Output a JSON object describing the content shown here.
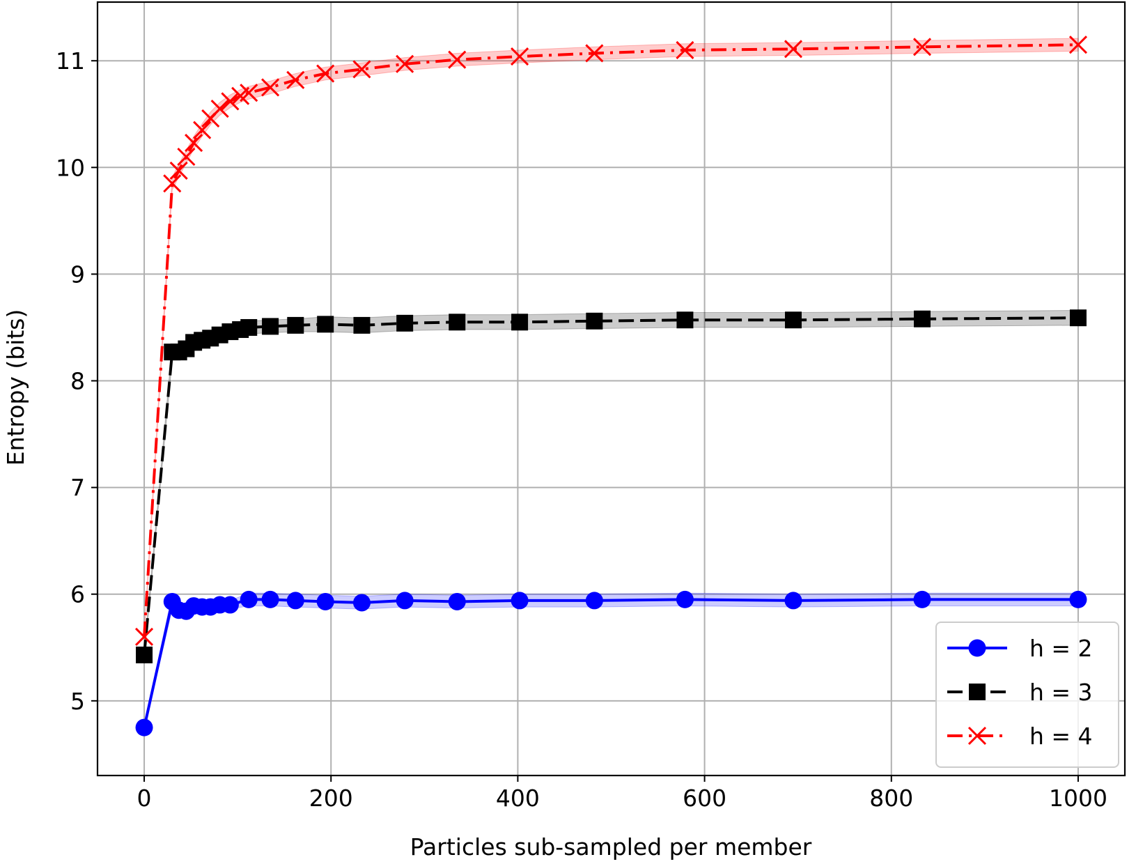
{
  "chart_data": {
    "type": "line",
    "title": "",
    "xlabel": "Particles sub-sampled per member",
    "ylabel": "Entropy (bits)",
    "xlim": [
      -50,
      1050
    ],
    "ylim": [
      4.3,
      11.55
    ],
    "xticks": [
      0,
      200,
      400,
      600,
      800,
      1000
    ],
    "xtick_labels": [
      "0",
      "200",
      "400",
      "600",
      "800",
      "1000"
    ],
    "yticks": [
      5,
      6,
      7,
      8,
      9,
      10,
      11
    ],
    "ytick_labels": [
      "5",
      "6",
      "7",
      "8",
      "9",
      "10",
      "11"
    ],
    "grid": true,
    "legend_position": "lower right",
    "x": [
      1,
      30,
      37,
      45,
      53,
      62,
      71,
      81,
      92,
      105,
      118,
      135,
      155,
      178,
      203,
      232,
      264,
      300,
      340,
      383,
      430,
      481,
      537,
      598,
      665,
      737,
      816,
      901,
      994
    ],
    "series": [
      {
        "name": "h = 2",
        "color": "#0000ff",
        "line_style": "solid",
        "marker": "circle",
        "band_color": "#0000ff",
        "x": [
          0,
          30,
          37,
          45,
          53,
          62,
          71,
          81,
          92,
          112,
          135,
          162,
          194,
          233,
          279,
          335,
          402,
          482,
          579,
          695,
          833,
          1000
        ],
        "values": [
          4.75,
          5.93,
          5.85,
          5.84,
          5.89,
          5.88,
          5.88,
          5.9,
          5.9,
          5.95,
          5.95,
          5.94,
          5.93,
          5.92,
          5.94,
          5.93,
          5.94,
          5.94,
          5.95,
          5.94,
          5.95,
          5.95
        ],
        "band_low": [
          4.73,
          5.86,
          5.8,
          5.8,
          5.84,
          5.84,
          5.84,
          5.86,
          5.86,
          5.89,
          5.89,
          5.88,
          5.87,
          5.86,
          5.88,
          5.87,
          5.88,
          5.88,
          5.89,
          5.88,
          5.89,
          5.89
        ],
        "band_high": [
          4.77,
          6.0,
          5.9,
          5.88,
          5.94,
          5.92,
          5.92,
          5.94,
          5.94,
          6.01,
          6.01,
          6.0,
          5.99,
          5.98,
          6.0,
          5.99,
          6.0,
          6.0,
          6.01,
          6.0,
          6.01,
          6.01
        ]
      },
      {
        "name": "h = 3",
        "color": "#000000",
        "line_style": "dashed",
        "marker": "square",
        "band_color": "#000000",
        "x": [
          0,
          30,
          37,
          45,
          53,
          62,
          71,
          81,
          92,
          103,
          112,
          135,
          162,
          194,
          233,
          279,
          335,
          402,
          482,
          579,
          695,
          833,
          1000
        ],
        "values": [
          5.43,
          8.27,
          8.27,
          8.3,
          8.36,
          8.38,
          8.4,
          8.43,
          8.46,
          8.48,
          8.5,
          8.51,
          8.52,
          8.53,
          8.52,
          8.54,
          8.55,
          8.55,
          8.56,
          8.57,
          8.57,
          8.58,
          8.59
        ],
        "band_low": [
          5.4,
          8.2,
          8.2,
          8.23,
          8.29,
          8.31,
          8.33,
          8.36,
          8.39,
          8.42,
          8.44,
          8.45,
          8.46,
          8.46,
          8.45,
          8.47,
          8.48,
          8.48,
          8.49,
          8.5,
          8.5,
          8.51,
          8.52
        ],
        "band_high": [
          5.46,
          8.34,
          8.34,
          8.37,
          8.43,
          8.45,
          8.47,
          8.5,
          8.53,
          8.54,
          8.56,
          8.57,
          8.58,
          8.6,
          8.59,
          8.61,
          8.62,
          8.62,
          8.63,
          8.64,
          8.64,
          8.65,
          8.66
        ]
      },
      {
        "name": "h = 4",
        "color": "#ff0000",
        "line_style": "dashdot",
        "marker": "x",
        "band_color": "#ff0000",
        "x": [
          0,
          30,
          37,
          45,
          53,
          62,
          71,
          81,
          92,
          103,
          112,
          135,
          162,
          194,
          233,
          279,
          335,
          402,
          482,
          579,
          695,
          833,
          1000
        ],
        "values": [
          5.6,
          9.85,
          9.97,
          10.1,
          10.23,
          10.35,
          10.46,
          10.55,
          10.62,
          10.67,
          10.7,
          10.75,
          10.82,
          10.88,
          10.92,
          10.97,
          11.01,
          11.04,
          11.07,
          11.1,
          11.11,
          11.13,
          11.15
        ],
        "band_low": [
          5.57,
          9.79,
          9.91,
          10.04,
          10.17,
          10.29,
          10.4,
          10.49,
          10.56,
          10.61,
          10.64,
          10.69,
          10.76,
          10.82,
          10.86,
          10.91,
          10.95,
          10.98,
          11.01,
          11.04,
          11.05,
          11.07,
          11.09
        ],
        "band_high": [
          5.63,
          9.91,
          10.03,
          10.16,
          10.29,
          10.41,
          10.52,
          10.61,
          10.68,
          10.73,
          10.76,
          10.81,
          10.88,
          10.94,
          10.98,
          11.03,
          11.07,
          11.1,
          11.13,
          11.16,
          11.17,
          11.19,
          11.21
        ]
      }
    ]
  }
}
